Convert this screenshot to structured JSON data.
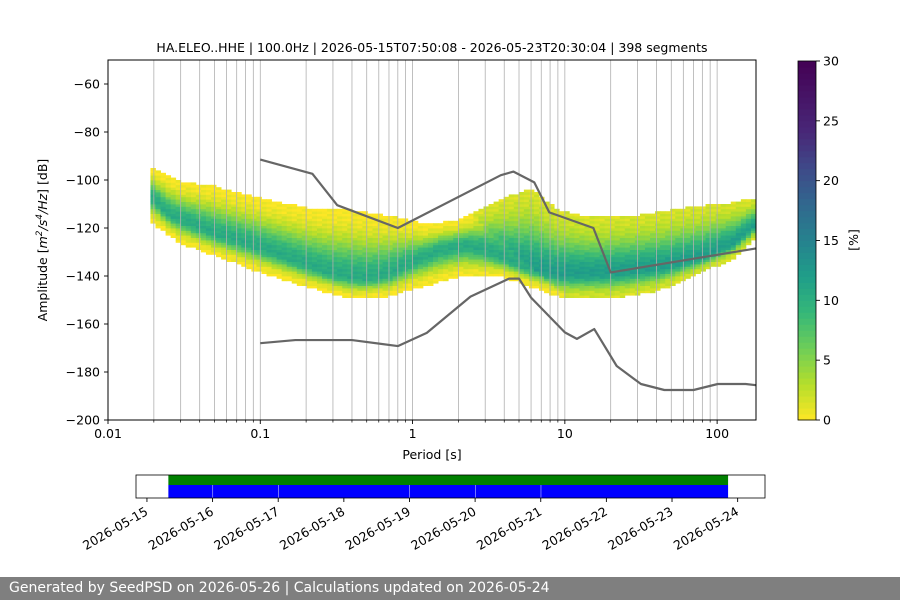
{
  "footer": {
    "text": "Generated by SeedPSD on 2026-05-26 | Calculations updated on 2026-05-24"
  },
  "chart_data": {
    "type": "heatmap",
    "title": "HA.ELEO..HHE | 100.0Hz | 2026-05-15T07:50:08 - 2026-05-23T20:30:04 | 398 segments",
    "xlabel": "Period [s]",
    "ylabel_parts": [
      "Amplitude [",
      "m",
      "2",
      "/",
      "s",
      "4",
      "/",
      "Hz",
      "] [dB]"
    ],
    "x_scale": "log",
    "xlim": [
      0.01,
      180
    ],
    "x_ticks": [
      {
        "value": 0.01,
        "label": "0.01"
      },
      {
        "value": 0.1,
        "label": "0.1"
      },
      {
        "value": 1,
        "label": "1"
      },
      {
        "value": 10,
        "label": "10"
      },
      {
        "value": 100,
        "label": "100"
      }
    ],
    "ylim": [
      -200,
      -50
    ],
    "y_ticks": [
      {
        "value": -60,
        "label": "−60"
      },
      {
        "value": -80,
        "label": "−80"
      },
      {
        "value": -100,
        "label": "−100"
      },
      {
        "value": -120,
        "label": "−120"
      },
      {
        "value": -140,
        "label": "−140"
      },
      {
        "value": -160,
        "label": "−160"
      },
      {
        "value": -180,
        "label": "−180"
      },
      {
        "value": -200,
        "label": "−200"
      }
    ],
    "grid": "x-minor",
    "colorbar": {
      "label": "[%]",
      "range": [
        0,
        30
      ],
      "ticks": [
        {
          "value": 0,
          "label": "0"
        },
        {
          "value": 5,
          "label": "5"
        },
        {
          "value": 10,
          "label": "10"
        },
        {
          "value": 15,
          "label": "15"
        },
        {
          "value": 20,
          "label": "20"
        },
        {
          "value": 25,
          "label": "25"
        },
        {
          "value": 30,
          "label": "30"
        }
      ],
      "colormap": "viridis_r"
    },
    "psd_band": {
      "period_min": 0.019,
      "period_max": 180,
      "center_db": [
        [
          0.019,
          -106
        ],
        [
          0.025,
          -114
        ],
        [
          0.05,
          -122
        ],
        [
          0.1,
          -128
        ],
        [
          0.2,
          -135
        ],
        [
          0.3,
          -139
        ],
        [
          0.5,
          -141
        ],
        [
          0.7,
          -139
        ],
        [
          1.0,
          -134
        ],
        [
          1.5,
          -129
        ],
        [
          2.2,
          -127
        ],
        [
          3.0,
          -129
        ],
        [
          4.5,
          -134
        ],
        [
          6.0,
          -137
        ],
        [
          9.0,
          -139
        ],
        [
          14,
          -139
        ],
        [
          25,
          -138
        ],
        [
          45,
          -136
        ],
        [
          80,
          -132
        ],
        [
          130,
          -126
        ],
        [
          180,
          -118
        ]
      ],
      "upper_db": [
        [
          0.019,
          -95
        ],
        [
          0.03,
          -101
        ],
        [
          0.05,
          -103
        ],
        [
          0.1,
          -108
        ],
        [
          0.2,
          -112
        ],
        [
          0.4,
          -113
        ],
        [
          0.8,
          -116
        ],
        [
          1.2,
          -119
        ],
        [
          2.0,
          -117
        ],
        [
          4.0,
          -108
        ],
        [
          6.0,
          -104
        ],
        [
          9.0,
          -113
        ],
        [
          15,
          -116
        ],
        [
          30,
          -115
        ],
        [
          60,
          -112
        ],
        [
          120,
          -110
        ],
        [
          180,
          -108
        ]
      ],
      "lower_db": [
        [
          0.019,
          -117
        ],
        [
          0.03,
          -126
        ],
        [
          0.05,
          -131
        ],
        [
          0.1,
          -138
        ],
        [
          0.2,
          -144
        ],
        [
          0.4,
          -149
        ],
        [
          0.7,
          -148
        ],
        [
          1.0,
          -145
        ],
        [
          2.0,
          -140
        ],
        [
          4.0,
          -140
        ],
        [
          6.0,
          -144
        ],
        [
          10,
          -149
        ],
        [
          20,
          -149
        ],
        [
          40,
          -146
        ],
        [
          80,
          -138
        ],
        [
          130,
          -132
        ],
        [
          180,
          -124
        ]
      ]
    },
    "noise_models": [
      {
        "points": [
          [
            0.1,
            -91.5
          ],
          [
            0.22,
            -97.4
          ],
          [
            0.32,
            -110.5
          ],
          [
            0.8,
            -120
          ],
          [
            3.8,
            -98
          ],
          [
            4.6,
            -96.5
          ],
          [
            6.3,
            -101
          ],
          [
            7.9,
            -113.5
          ],
          [
            15.4,
            -120
          ],
          [
            20,
            -138.5
          ],
          [
            180,
            -128.5
          ]
        ]
      },
      {
        "points": [
          [
            0.1,
            -168
          ],
          [
            0.17,
            -166.7
          ],
          [
            0.4,
            -166.7
          ],
          [
            0.8,
            -169.2
          ],
          [
            1.24,
            -163.7
          ],
          [
            2.4,
            -148.6
          ],
          [
            4.3,
            -141.1
          ],
          [
            5.0,
            -141.1
          ],
          [
            6.0,
            -149
          ],
          [
            10,
            -163.5
          ],
          [
            12,
            -166.2
          ],
          [
            15.6,
            -162.1
          ],
          [
            21.9,
            -177.5
          ],
          [
            31.6,
            -185
          ],
          [
            45,
            -187.5
          ],
          [
            70,
            -187.5
          ],
          [
            101,
            -185
          ],
          [
            154,
            -185
          ],
          [
            180,
            -185.5
          ]
        ]
      }
    ]
  },
  "timeline": {
    "x_ticks": [
      "2026-05-15",
      "2026-05-16",
      "2026-05-17",
      "2026-05-18",
      "2026-05-19",
      "2026-05-20",
      "2026-05-21",
      "2026-05-22",
      "2026-05-23",
      "2026-05-24"
    ],
    "range_start": "2026-05-14T20:00:00",
    "range_end": "2026-05-24T10:00:00",
    "coverage": {
      "start": "2026-05-15T07:50:08",
      "end": "2026-05-23T20:30:04",
      "color": "#008000"
    },
    "data_segments": [
      {
        "start": "2026-05-15T07:50:08",
        "end": "2026-05-16T00:00:00"
      },
      {
        "start": "2026-05-16T00:10:00",
        "end": "2026-05-17T00:00:00"
      },
      {
        "start": "2026-05-17T00:10:00",
        "end": "2026-05-19T00:00:00"
      },
      {
        "start": "2026-05-19T00:10:00",
        "end": "2026-05-20T00:00:00"
      },
      {
        "start": "2026-05-20T00:10:00",
        "end": "2026-05-21T00:00:00"
      },
      {
        "start": "2026-05-21T00:10:00",
        "end": "2026-05-23T20:30:04"
      }
    ],
    "segment_color": "#0000ff"
  }
}
